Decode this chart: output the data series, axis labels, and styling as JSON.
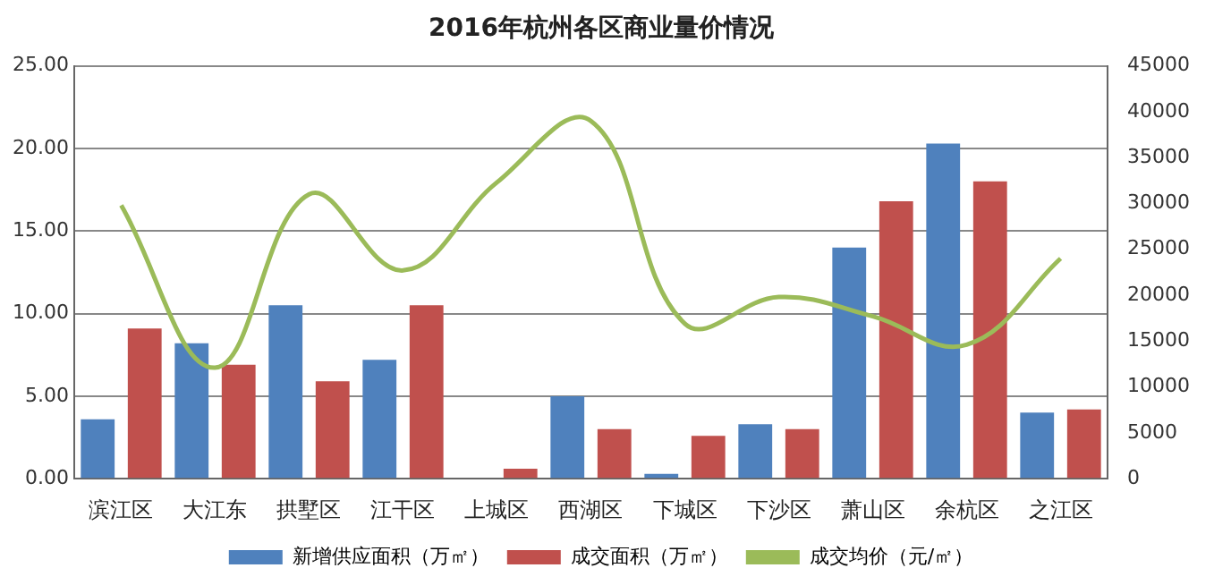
{
  "chart_data": {
    "type": "bar",
    "title": "2016年杭州各区商业量价情况",
    "categories": [
      "滨江区",
      "大江东",
      "拱墅区",
      "江干区",
      "上城区",
      "西湖区",
      "下城区",
      "下沙区",
      "萧山区",
      "余杭区",
      "之江区"
    ],
    "series": [
      {
        "name": "新增供应面积（万㎡）",
        "color": "#4f81bd",
        "values": [
          3.6,
          8.2,
          10.5,
          7.2,
          0,
          5.0,
          0.3,
          3.3,
          14.0,
          20.3,
          4.0
        ]
      },
      {
        "name": "成交面积（万㎡）",
        "color": "#c0504d",
        "values": [
          9.1,
          6.9,
          5.9,
          10.5,
          0.6,
          3.0,
          2.6,
          3.0,
          16.8,
          18.0,
          4.2
        ]
      },
      {
        "name": "成交均价（元/㎡）",
        "type": "line",
        "axis": "y2",
        "color": "#9bbb59",
        "marker": "none",
        "values": [
          29800,
          12100,
          31000,
          22700,
          32300,
          39000,
          16900,
          19800,
          17700,
          14600,
          24000
        ]
      }
    ],
    "ylim": [
      0,
      25
    ],
    "yticks": [
      {
        "value": 0,
        "label": "0.00"
      },
      {
        "value": 5,
        "label": "5.00"
      },
      {
        "value": 10,
        "label": "10.00"
      },
      {
        "value": 15,
        "label": "15.00"
      },
      {
        "value": 20,
        "label": "20.00"
      },
      {
        "value": 25,
        "label": "25.00"
      }
    ],
    "y2lim": [
      0,
      45000
    ],
    "y2ticks": [
      0,
      5000,
      10000,
      15000,
      20000,
      25000,
      30000,
      35000,
      40000,
      45000
    ],
    "grid": "y",
    "legend": "bottom"
  }
}
